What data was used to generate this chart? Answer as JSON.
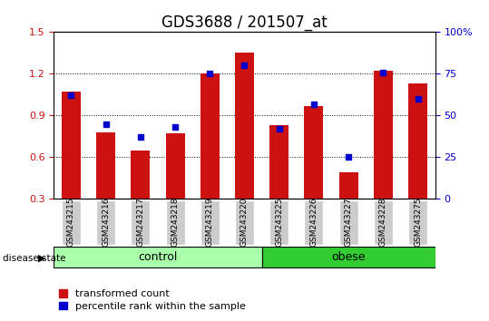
{
  "title": "GDS3688 / 201507_at",
  "samples": [
    "GSM243215",
    "GSM243216",
    "GSM243217",
    "GSM243218",
    "GSM243219",
    "GSM243220",
    "GSM243225",
    "GSM243226",
    "GSM243227",
    "GSM243228",
    "GSM243275"
  ],
  "red_values": [
    1.07,
    0.78,
    0.65,
    0.77,
    1.2,
    1.35,
    0.83,
    0.97,
    0.49,
    1.22,
    1.13
  ],
  "blue_values": [
    62,
    45,
    37,
    43,
    75,
    80,
    42,
    57,
    25,
    76,
    60
  ],
  "ylim_left": [
    0.3,
    1.5
  ],
  "ylim_right": [
    0,
    100
  ],
  "yticks_left": [
    0.3,
    0.6,
    0.9,
    1.2,
    1.5
  ],
  "yticks_right": [
    0,
    25,
    50,
    75,
    100
  ],
  "yticklabels_right": [
    "0",
    "25",
    "50",
    "75",
    "100%"
  ],
  "bar_color": "#CC1111",
  "marker_color": "#0000CC",
  "bar_width": 0.55,
  "control_color": "#AAFFAA",
  "obese_color": "#33CC33",
  "label_bg_color": "#CCCCCC",
  "legend_red": "transformed count",
  "legend_blue": "percentile rank within the sample",
  "disease_state_label": "disease state",
  "control_label": "control",
  "obese_label": "obese",
  "title_fontsize": 12,
  "tick_fontsize": 8,
  "grid_yticks": [
    0.6,
    0.9,
    1.2
  ]
}
